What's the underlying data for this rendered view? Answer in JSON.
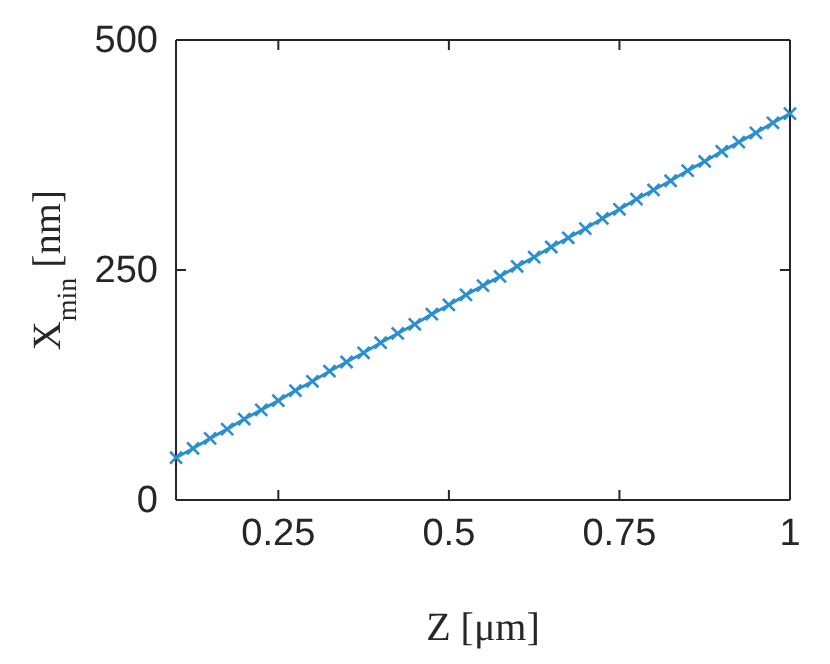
{
  "chart_data": {
    "type": "line",
    "xlabel": "Z [μm]",
    "ylabel": "X$_{min}$ [nm]",
    "x": [
      0.1,
      0.125,
      0.15,
      0.175,
      0.2,
      0.225,
      0.25,
      0.275,
      0.3,
      0.325,
      0.35,
      0.375,
      0.4,
      0.425,
      0.45,
      0.475,
      0.5,
      0.525,
      0.55,
      0.575,
      0.6,
      0.625,
      0.65,
      0.675,
      0.7,
      0.725,
      0.75,
      0.775,
      0.8,
      0.825,
      0.85,
      0.875,
      0.9,
      0.925,
      0.95,
      0.975,
      1
    ],
    "series": [
      {
        "color": "#2a8fd0",
        "values": [
          46,
          56,
          67,
          77,
          88,
          98,
          108,
          119,
          129,
          140,
          150,
          160,
          171,
          181,
          191,
          202,
          212,
          223,
          233,
          243,
          254,
          264,
          275,
          285,
          295,
          306,
          316,
          327,
          337,
          347,
          358,
          368,
          379,
          389,
          399,
          410,
          420
        ]
      }
    ],
    "xlim": [
      0.1,
      1
    ],
    "xticks": [
      0.25,
      0.5,
      0.75,
      1
    ],
    "ylim": [
      0,
      500
    ],
    "yticks": [
      0,
      250,
      500
    ],
    "grid": false,
    "marker": "cross"
  }
}
